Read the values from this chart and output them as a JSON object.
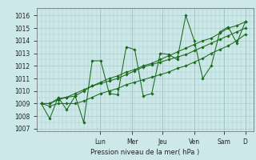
{
  "bg_color": "#cce8e8",
  "grid_color": "#aacccc",
  "line_color": "#1a6b1a",
  "marker_color": "#1a6b1a",
  "xlabel": "Pression niveau de la mer( hPa )",
  "ylim": [
    1006.8,
    1016.6
  ],
  "yticks": [
    1007,
    1008,
    1009,
    1010,
    1011,
    1012,
    1013,
    1014,
    1015,
    1016
  ],
  "x_day_labels": [
    "Lun",
    "Mer",
    "Jeu",
    "Ven",
    "Sam",
    "D"
  ],
  "x_day_positions": [
    0.29,
    0.445,
    0.595,
    0.75,
    0.895,
    1.0
  ],
  "xlim_days": 7,
  "series1_y": [
    1009.0,
    1007.8,
    1009.5,
    1008.5,
    1009.6,
    1007.5,
    1012.4,
    1012.4,
    1009.8,
    1009.7,
    1013.5,
    1013.3,
    1009.6,
    1009.8,
    1013.0,
    1012.9,
    1012.5,
    1016.0,
    1014.0,
    1011.0,
    1012.0,
    1014.7,
    1015.1,
    1013.8,
    1015.5
  ],
  "series2_y": [
    1009.0,
    1009.0,
    1009.3,
    1009.5,
    1009.8,
    1010.1,
    1010.4,
    1010.6,
    1010.8,
    1011.0,
    1011.3,
    1011.6,
    1011.9,
    1012.1,
    1012.3,
    1012.5,
    1012.7,
    1012.9,
    1013.2,
    1013.5,
    1013.8,
    1014.1,
    1014.4,
    1014.7,
    1015.0
  ],
  "series3_y": [
    1009.0,
    1008.8,
    1009.0,
    1009.0,
    1009.0,
    1009.2,
    1009.5,
    1009.8,
    1010.0,
    1010.2,
    1010.5,
    1010.7,
    1010.9,
    1011.1,
    1011.3,
    1011.5,
    1011.8,
    1012.0,
    1012.3,
    1012.6,
    1013.0,
    1013.3,
    1013.6,
    1014.0,
    1014.5
  ],
  "series4_y": [
    1009.0,
    1009.0,
    1009.4,
    1009.5,
    1009.6,
    1010.0,
    1010.4,
    1010.7,
    1011.0,
    1011.2,
    1011.5,
    1011.7,
    1012.0,
    1012.2,
    1012.5,
    1012.8,
    1013.1,
    1013.4,
    1013.7,
    1014.0,
    1014.2,
    1014.6,
    1015.0,
    1015.2,
    1015.5
  ]
}
